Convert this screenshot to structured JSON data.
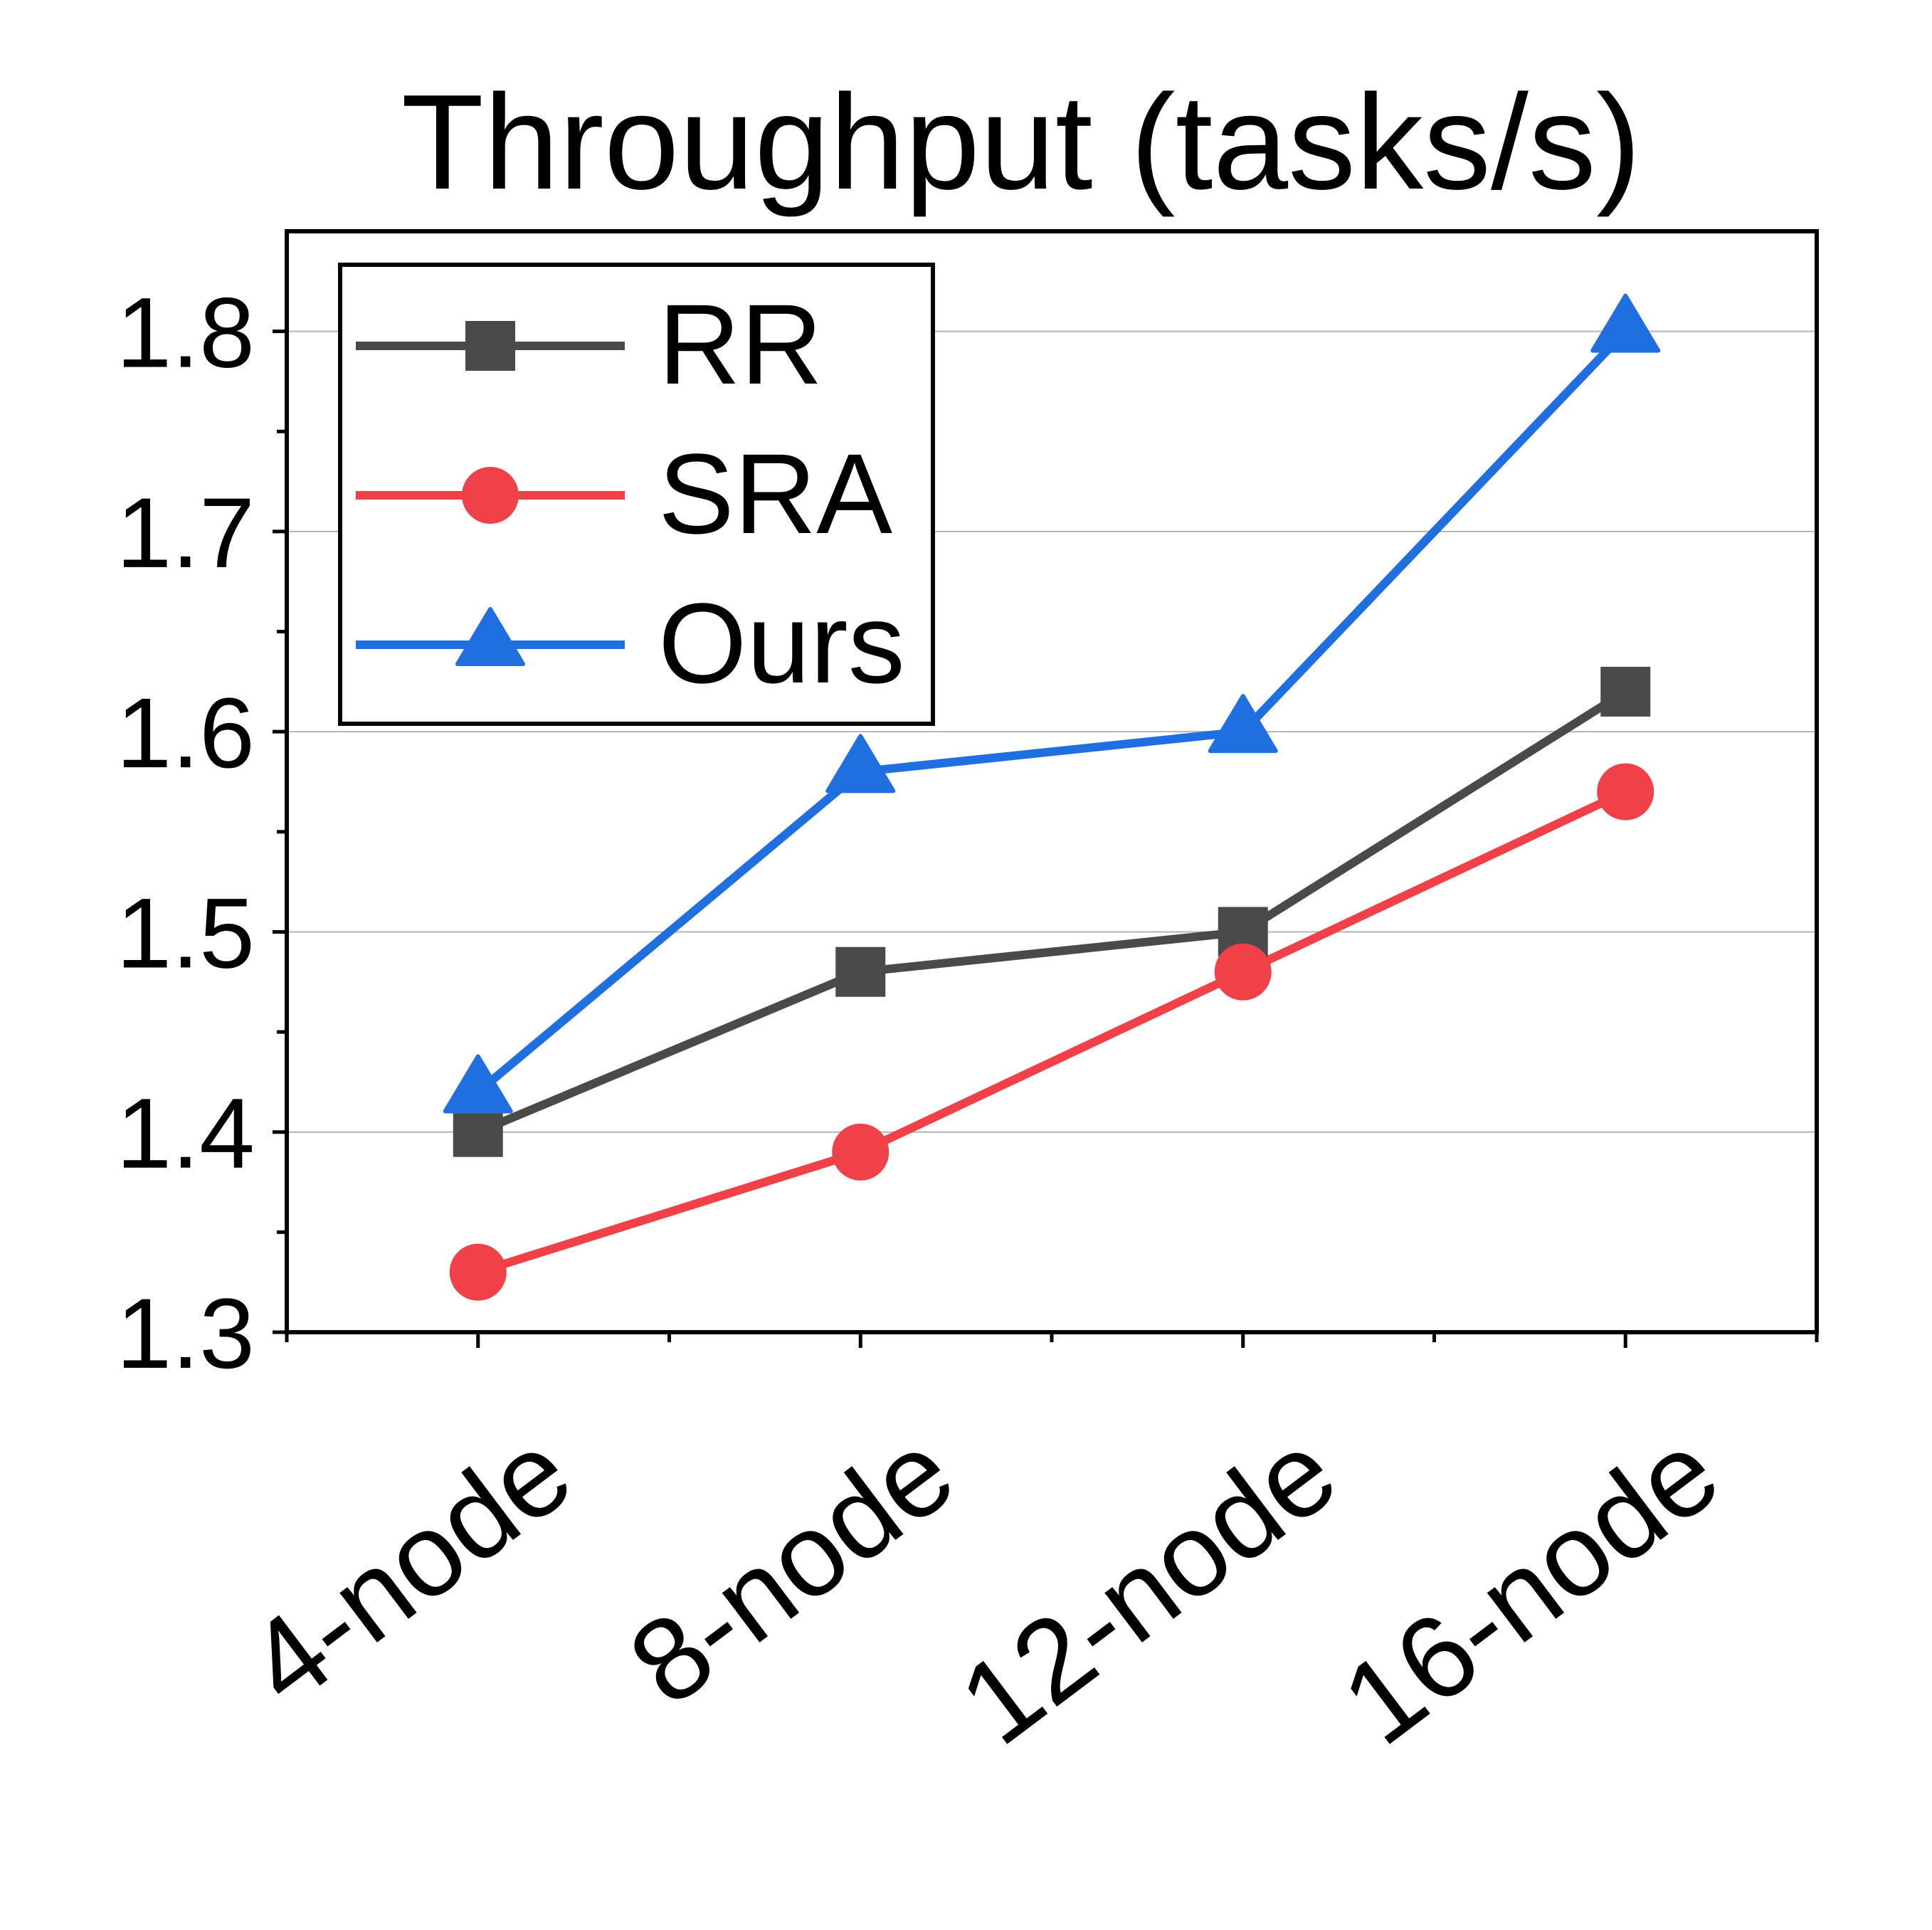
{
  "chart_data": {
    "type": "line",
    "title": "Throughput (tasks/s)",
    "xlabel": "",
    "ylabel": "",
    "categories": [
      "4-node",
      "8-node",
      "12-node",
      "16-node"
    ],
    "ylim": [
      1.3,
      1.85
    ],
    "yticks": [
      "1.3",
      "1.4",
      "1.5",
      "1.6",
      "1.7",
      "1.8"
    ],
    "grid": true,
    "legend_position": "top-left",
    "series": [
      {
        "name": "RR",
        "values": [
          1.4,
          1.48,
          1.5,
          1.62
        ],
        "color": "#4a4a4a",
        "marker": "square"
      },
      {
        "name": "SRA",
        "values": [
          1.33,
          1.39,
          1.48,
          1.57
        ],
        "color": "#f04048",
        "marker": "circle"
      },
      {
        "name": "Ours",
        "values": [
          1.42,
          1.58,
          1.6,
          1.8
        ],
        "color": "#1f6fe0",
        "marker": "triangle"
      }
    ]
  }
}
